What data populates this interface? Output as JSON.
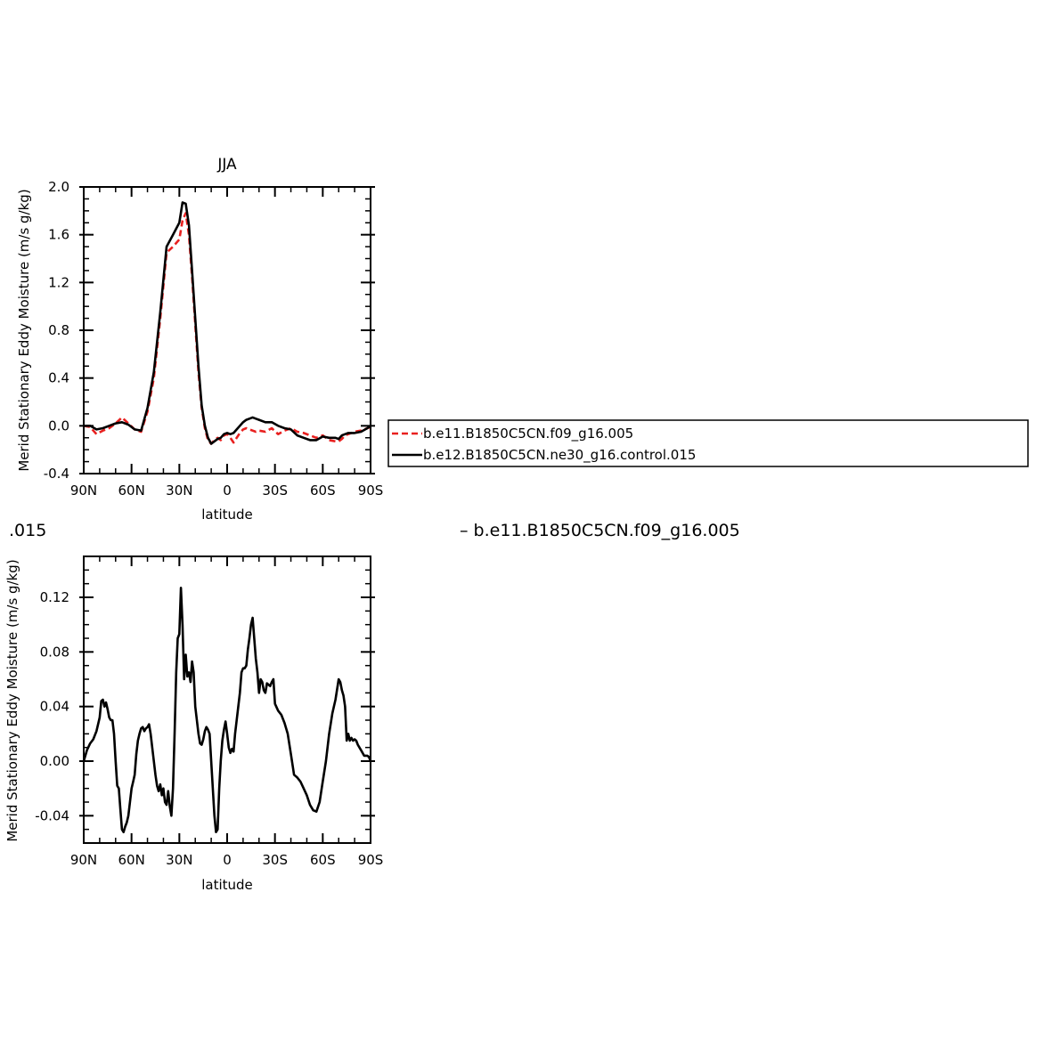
{
  "chart_data": [
    {
      "type": "line",
      "title": "JJA",
      "xlabel": "latitude",
      "ylabel": "Merid Stationary Eddy Moisture (m/s g/kg)",
      "xlim": [
        90,
        -90
      ],
      "ylim": [
        -0.4,
        2.0
      ],
      "x_ticks": [
        90,
        60,
        30,
        0,
        -30,
        -60,
        -90
      ],
      "x_tick_labels": [
        "90N",
        "60N",
        "30N",
        "0",
        "30S",
        "60S",
        "90S"
      ],
      "y_ticks": [
        -0.4,
        0.0,
        0.4,
        0.8,
        1.2,
        1.6,
        2.0
      ],
      "y_tick_labels": [
        "-0.4",
        "0.0",
        "0.4",
        "0.8",
        "1.2",
        "1.6",
        "2.0"
      ],
      "legend": {
        "position": "right",
        "entries": [
          "b.e11.B1850C5CN.f09_g16.005",
          "b.e12.B1850C5CN.ne30_g16.control.015"
        ]
      },
      "series": [
        {
          "name": "b.e11.B1850C5CN.f09_g16.005",
          "color": "#e8201f",
          "dash": "dashed",
          "x": [
            90,
            86,
            82,
            78,
            74,
            70,
            66,
            62,
            58,
            54,
            50,
            46,
            42,
            38,
            34,
            30,
            28,
            26,
            24,
            22,
            20,
            18,
            16,
            14,
            12,
            10,
            8,
            6,
            4,
            2,
            0,
            -2,
            -4,
            -6,
            -8,
            -10,
            -12,
            -14,
            -16,
            -18,
            -20,
            -24,
            -28,
            -32,
            -36,
            -40,
            -44,
            -48,
            -52,
            -56,
            -60,
            -64,
            -68,
            -70,
            -72,
            -74,
            -76,
            -80,
            -84,
            -88,
            -90
          ],
          "y": [
            0.0,
            -0.01,
            -0.07,
            -0.04,
            -0.02,
            0.02,
            0.07,
            0.02,
            -0.03,
            -0.05,
            0.12,
            0.4,
            0.9,
            1.45,
            1.5,
            1.56,
            1.72,
            1.78,
            1.6,
            1.25,
            0.85,
            0.45,
            0.15,
            -0.02,
            -0.12,
            -0.15,
            -0.12,
            -0.1,
            -0.12,
            -0.08,
            -0.07,
            -0.1,
            -0.14,
            -0.1,
            -0.06,
            -0.03,
            -0.02,
            -0.03,
            -0.04,
            -0.05,
            -0.04,
            -0.05,
            -0.02,
            -0.07,
            -0.04,
            -0.02,
            -0.05,
            -0.06,
            -0.08,
            -0.1,
            -0.08,
            -0.12,
            -0.13,
            -0.13,
            -0.11,
            -0.08,
            -0.07,
            -0.05,
            -0.04,
            -0.02,
            -0.01
          ]
        },
        {
          "name": "b.e12.B1850C5CN.ne30_g16.control.015",
          "color": "#000000",
          "dash": "solid",
          "x": [
            90,
            86,
            82,
            78,
            74,
            70,
            66,
            62,
            58,
            54,
            50,
            46,
            42,
            38,
            34,
            30,
            28,
            26,
            24,
            22,
            20,
            18,
            16,
            14,
            12,
            10,
            8,
            6,
            4,
            2,
            0,
            -2,
            -4,
            -6,
            -8,
            -10,
            -12,
            -14,
            -16,
            -18,
            -20,
            -24,
            -28,
            -32,
            -36,
            -40,
            -44,
            -48,
            -52,
            -56,
            -60,
            -64,
            -68,
            -70,
            -72,
            -74,
            -76,
            -80,
            -84,
            -88,
            -90
          ],
          "y": [
            0.0,
            0.0,
            -0.03,
            -0.02,
            0.0,
            0.02,
            0.03,
            0.01,
            -0.03,
            -0.04,
            0.15,
            0.45,
            0.95,
            1.5,
            1.6,
            1.7,
            1.87,
            1.86,
            1.68,
            1.3,
            0.9,
            0.5,
            0.17,
            0.0,
            -0.1,
            -0.15,
            -0.13,
            -0.11,
            -0.1,
            -0.07,
            -0.06,
            -0.07,
            -0.06,
            -0.03,
            0.0,
            0.03,
            0.05,
            0.06,
            0.07,
            0.06,
            0.05,
            0.03,
            0.03,
            0.0,
            -0.02,
            -0.03,
            -0.08,
            -0.1,
            -0.12,
            -0.12,
            -0.09,
            -0.1,
            -0.1,
            -0.11,
            -0.08,
            -0.07,
            -0.06,
            -0.06,
            -0.05,
            -0.02,
            0.0
          ]
        }
      ]
    },
    {
      "type": "line",
      "title_fragment": ".015",
      "subtitle": "– b.e11.B1850C5CN.f09_g16.005",
      "xlabel": "latitude",
      "ylabel": "Merid Stationary Eddy Moisture (m/s g/kg)",
      "xlim": [
        90,
        -90
      ],
      "ylim": [
        -0.06,
        0.15
      ],
      "x_ticks": [
        90,
        60,
        30,
        0,
        -30,
        -60,
        -90
      ],
      "x_tick_labels": [
        "90N",
        "60N",
        "30N",
        "0",
        "30S",
        "60S",
        "90S"
      ],
      "y_ticks": [
        -0.04,
        0.0,
        0.04,
        0.08,
        0.12
      ],
      "y_tick_labels": [
        "-0.04",
        "0.00",
        "0.04",
        "0.08",
        "0.12"
      ],
      "series": [
        {
          "color": "#000000",
          "dash": "solid",
          "x": [
            90,
            88,
            86,
            84,
            82,
            80,
            79,
            78,
            77,
            76,
            75,
            74,
            73,
            72,
            71,
            70,
            69,
            68,
            67,
            66,
            65,
            64,
            63,
            62,
            61,
            60,
            59,
            58,
            57,
            56,
            55,
            54,
            53,
            52,
            51,
            50,
            49,
            48,
            47,
            46,
            45,
            44,
            43,
            42,
            41,
            40,
            39,
            38,
            37,
            36,
            35,
            34,
            33,
            32,
            31,
            30,
            29,
            28,
            27,
            26,
            25,
            24,
            23,
            22,
            21,
            20,
            19,
            18,
            17,
            16,
            15,
            14,
            13,
            12,
            11,
            10,
            9,
            8,
            7,
            6,
            5,
            4,
            3,
            2,
            1,
            0,
            -1,
            -2,
            -3,
            -4,
            -5,
            -6,
            -7,
            -8,
            -9,
            -10,
            -11,
            -12,
            -13,
            -14,
            -15,
            -16,
            -17,
            -18,
            -19,
            -20,
            -21,
            -22,
            -23,
            -24,
            -25,
            -26,
            -27,
            -28,
            -29,
            -30,
            -32,
            -34,
            -36,
            -38,
            -40,
            -42,
            -44,
            -46,
            -48,
            -50,
            -52,
            -54,
            -56,
            -58,
            -60,
            -62,
            -64,
            -66,
            -68,
            -70,
            -71,
            -72,
            -73,
            -74,
            -75,
            -76,
            -77,
            -78,
            -79,
            -80,
            -81,
            -82,
            -84,
            -86,
            -88,
            -89,
            -90
          ],
          "y": [
            0.0,
            0.008,
            0.013,
            0.016,
            0.022,
            0.032,
            0.044,
            0.045,
            0.04,
            0.043,
            0.038,
            0.032,
            0.03,
            0.03,
            0.02,
            0.0,
            -0.018,
            -0.02,
            -0.035,
            -0.05,
            -0.052,
            -0.048,
            -0.045,
            -0.04,
            -0.03,
            -0.02,
            -0.015,
            -0.01,
            0.005,
            0.015,
            0.02,
            0.024,
            0.025,
            0.022,
            0.024,
            0.025,
            0.027,
            0.02,
            0.01,
            0.0,
            -0.01,
            -0.018,
            -0.022,
            -0.017,
            -0.025,
            -0.02,
            -0.03,
            -0.032,
            -0.022,
            -0.033,
            -0.04,
            -0.02,
            0.02,
            0.065,
            0.09,
            0.093,
            0.127,
            0.1,
            0.06,
            0.078,
            0.062,
            0.065,
            0.058,
            0.073,
            0.065,
            0.04,
            0.03,
            0.02,
            0.013,
            0.012,
            0.016,
            0.022,
            0.025,
            0.023,
            0.02,
            0.0,
            -0.02,
            -0.04,
            -0.052,
            -0.05,
            -0.02,
            0.0,
            0.015,
            0.023,
            0.029,
            0.02,
            0.01,
            0.006,
            0.009,
            0.007,
            0.02,
            0.03,
            0.04,
            0.05,
            0.065,
            0.068,
            0.068,
            0.07,
            0.082,
            0.09,
            0.1,
            0.105,
            0.09,
            0.075,
            0.065,
            0.05,
            0.06,
            0.058,
            0.052,
            0.05,
            0.057,
            0.056,
            0.055,
            0.058,
            0.06,
            0.042,
            0.037,
            0.034,
            0.028,
            0.02,
            0.005,
            -0.01,
            -0.012,
            -0.015,
            -0.02,
            -0.025,
            -0.032,
            -0.036,
            -0.037,
            -0.03,
            -0.015,
            0.0,
            0.02,
            0.035,
            0.045,
            0.06,
            0.058,
            0.052,
            0.048,
            0.04,
            0.015,
            0.02,
            0.015,
            0.017,
            0.015,
            0.016,
            0.015,
            0.012,
            0.008,
            0.004,
            0.004,
            0.003,
            0.0
          ]
        }
      ]
    }
  ]
}
